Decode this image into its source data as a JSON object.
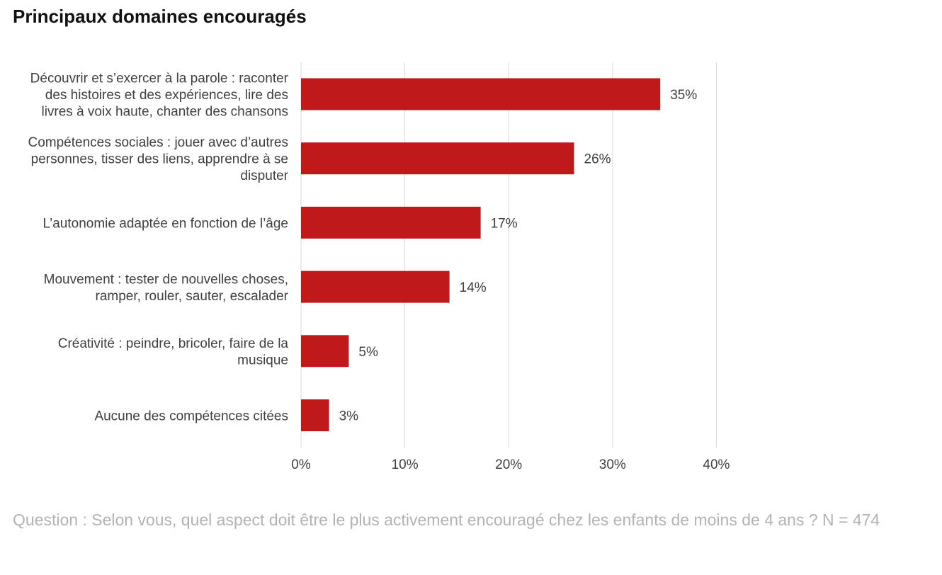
{
  "title": "Principaux domaines encouragés",
  "footnote": "Question : Selon vous, quel aspect doit être le plus activement encouragé chez les enfants de moins de 4 ans ? N = 474",
  "colors": {
    "bar": "#c0191b",
    "grid": "#d9d9d9",
    "text": "#404040",
    "footnote": "#b3b3b3"
  },
  "chart_data": {
    "type": "bar",
    "orientation": "horizontal",
    "title": "Principaux domaines encouragés",
    "xlabel": "",
    "ylabel": "",
    "xlim": [
      0,
      40
    ],
    "grid": true,
    "categories": [
      [
        "Découvrir et s’exercer à la parole : raconter",
        "des histoires et des expériences, lire des",
        "livres à voix haute, chanter des chansons"
      ],
      [
        "Compétences sociales : jouer avec d’autres",
        "personnes, tisser des liens, apprendre à se",
        "disputer"
      ],
      [
        "L’autonomie adaptée en fonction de l’âge"
      ],
      [
        "Mouvement : tester de nouvelles choses,",
        "ramper, rouler, sauter, escalader"
      ],
      [
        "Créativité : peindre, bricoler, faire de la",
        "musique"
      ],
      [
        "Aucune des compétences citées"
      ]
    ],
    "values": [
      34.6,
      26.3,
      17.3,
      14.3,
      4.6,
      2.7
    ],
    "value_labels": [
      "35%",
      "26%",
      "17%",
      "14%",
      "5%",
      "3%"
    ],
    "ticks": [
      0,
      10,
      20,
      30,
      40
    ],
    "tick_labels": [
      "0%",
      "10%",
      "20%",
      "30%",
      "40%"
    ]
  }
}
